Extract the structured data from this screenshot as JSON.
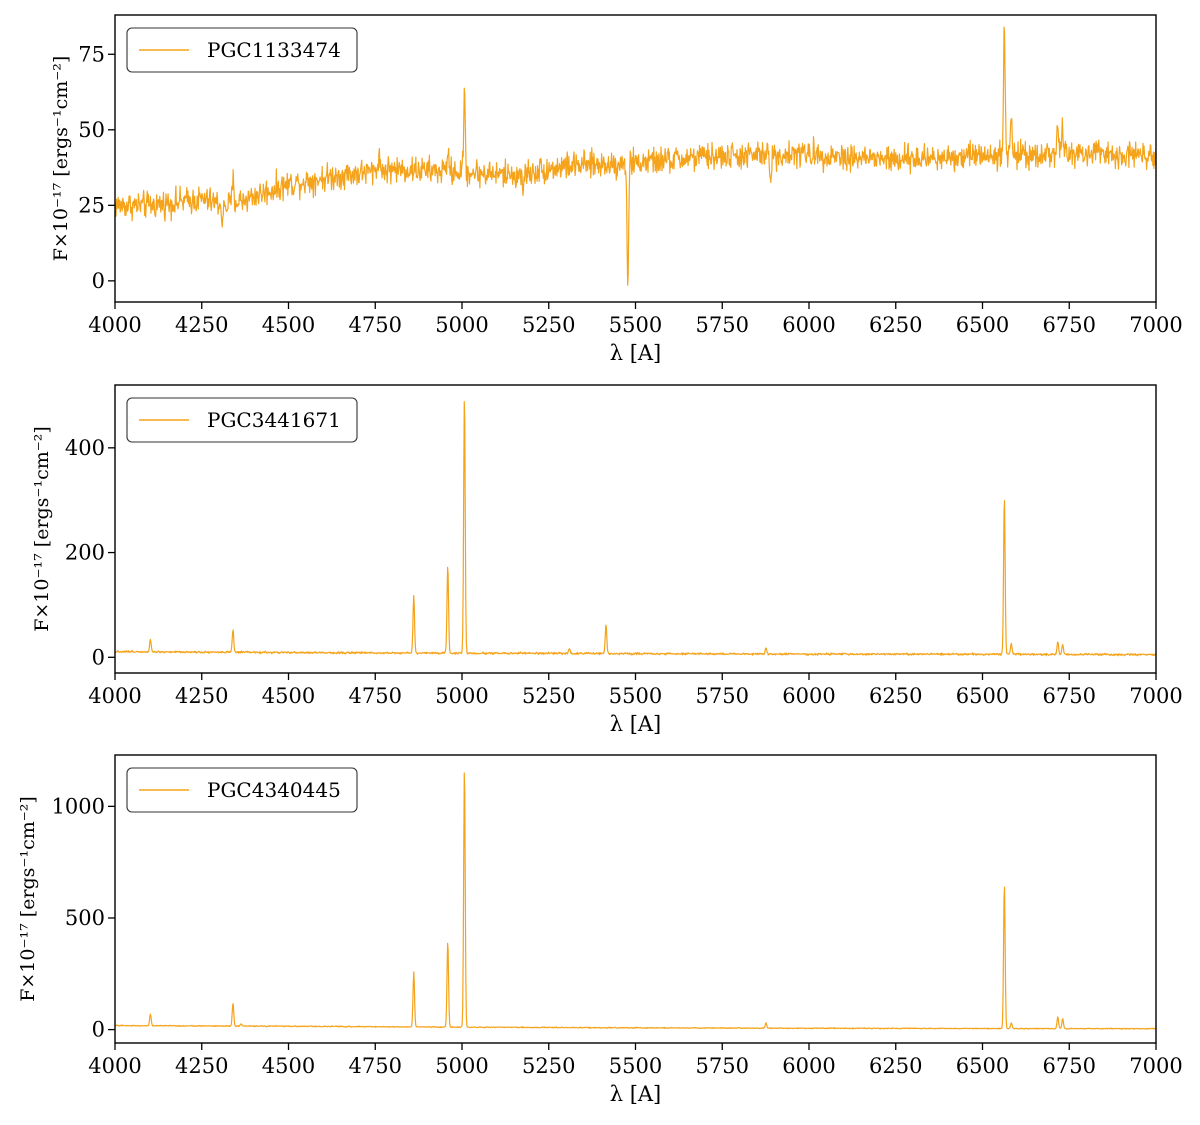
{
  "colors": {
    "series": "#f5a31a",
    "axis": "#000000"
  },
  "chart_data": [
    {
      "type": "line",
      "xlabel": "λ   [A]",
      "ylabel": "F×10⁻¹⁷ [ergs⁻¹cm⁻²]",
      "xlim": [
        4000,
        7000
      ],
      "ylim": [
        -7,
        88
      ],
      "xticks": [
        4000,
        4250,
        4500,
        4750,
        5000,
        5250,
        5500,
        5750,
        6000,
        6250,
        6500,
        6750,
        7000
      ],
      "yticks": [
        0,
        25,
        50,
        75
      ],
      "legend": "top-left",
      "series": [
        {
          "name": "PGC1133474",
          "baseline": [
            [
              4000,
              25
            ],
            [
              4100,
              25
            ],
            [
              4250,
              27
            ],
            [
              4320,
              25
            ],
            [
              4400,
              28
            ],
            [
              4500,
              32
            ],
            [
              4650,
              35
            ],
            [
              4800,
              37
            ],
            [
              5000,
              36
            ],
            [
              5150,
              35
            ],
            [
              5300,
              38
            ],
            [
              5500,
              39
            ],
            [
              5700,
              41
            ],
            [
              6000,
              42
            ],
            [
              6250,
              40
            ],
            [
              6400,
              41
            ],
            [
              6500,
              42
            ],
            [
              6700,
              42
            ],
            [
              7000,
              42
            ]
          ],
          "noise": 2.2,
          "lines": [
            [
              5007,
              63
            ],
            [
              6563,
              84
            ],
            [
              6583,
              55
            ],
            [
              6717,
              53
            ],
            [
              6731,
              50
            ],
            [
              4340,
              33
            ],
            [
              4760,
              43
            ],
            [
              4959,
              44
            ]
          ],
          "absorptions": [
            [
              5478,
              -2
            ],
            [
              5890,
              33
            ],
            [
              4310,
              19
            ],
            [
              5175,
              29
            ]
          ]
        }
      ]
    },
    {
      "type": "line",
      "xlabel": "λ   [A]",
      "ylabel": "F×10⁻¹⁷ [ergs⁻¹cm⁻²]",
      "xlim": [
        4000,
        7000
      ],
      "ylim": [
        -30,
        520
      ],
      "xticks": [
        4000,
        4250,
        4500,
        4750,
        5000,
        5250,
        5500,
        5750,
        6000,
        6250,
        6500,
        6750,
        7000
      ],
      "yticks": [
        0,
        200,
        400
      ],
      "legend": "top-left",
      "series": [
        {
          "name": "PGC3441671",
          "baseline": [
            [
              4000,
              11
            ],
            [
              4500,
              9
            ],
            [
              5000,
              8
            ],
            [
              5500,
              7
            ],
            [
              6000,
              6
            ],
            [
              6500,
              6
            ],
            [
              7000,
              5
            ]
          ],
          "noise": 1.6,
          "lines": [
            [
              4102,
              35
            ],
            [
              4340,
              52
            ],
            [
              4861,
              118
            ],
            [
              4959,
              175
            ],
            [
              5007,
              500
            ],
            [
              5310,
              17
            ],
            [
              5415,
              62
            ],
            [
              5876,
              18
            ],
            [
              6563,
              305
            ],
            [
              6583,
              25
            ],
            [
              6717,
              30
            ],
            [
              6731,
              25
            ]
          ],
          "absorptions": []
        }
      ]
    },
    {
      "type": "line",
      "xlabel": "λ   [A]",
      "ylabel": "F×10⁻¹⁷ [ergs⁻¹cm⁻²]",
      "xlim": [
        4000,
        7000
      ],
      "ylim": [
        -60,
        1230
      ],
      "xticks": [
        4000,
        4250,
        4500,
        4750,
        5000,
        5250,
        5500,
        5750,
        6000,
        6250,
        6500,
        6750,
        7000
      ],
      "yticks": [
        0,
        500,
        1000
      ],
      "legend": "top-left",
      "series": [
        {
          "name": "PGC4340445",
          "baseline": [
            [
              4000,
              18
            ],
            [
              4500,
              15
            ],
            [
              5000,
              11
            ],
            [
              5500,
              8
            ],
            [
              6000,
              6
            ],
            [
              6500,
              5
            ],
            [
              7000,
              4
            ]
          ],
          "noise": 1.8,
          "lines": [
            [
              4102,
              70
            ],
            [
              4340,
              118
            ],
            [
              4363,
              25
            ],
            [
              4861,
              258
            ],
            [
              4959,
              395
            ],
            [
              5007,
              1180
            ],
            [
              5876,
              30
            ],
            [
              6563,
              655
            ],
            [
              6583,
              30
            ],
            [
              6717,
              58
            ],
            [
              6731,
              50
            ]
          ],
          "absorptions": []
        }
      ]
    }
  ]
}
